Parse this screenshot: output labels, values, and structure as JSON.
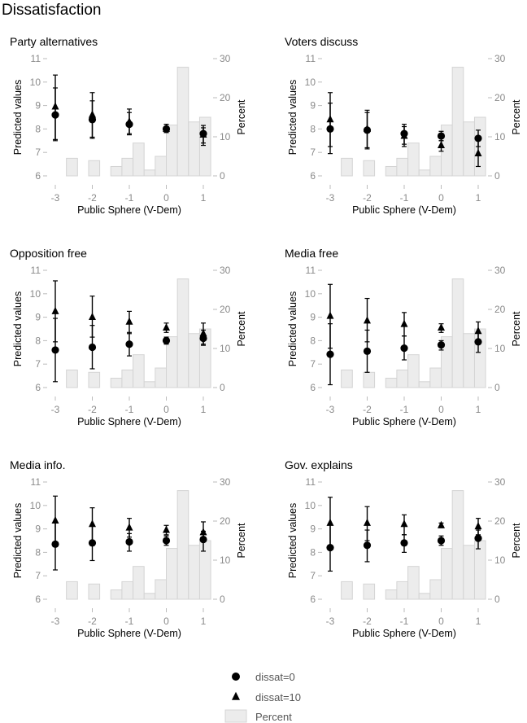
{
  "title": "Dissatisfaction",
  "chart_data": {
    "type": "scatter",
    "xlabel": "Public Sphere (V-Dem)",
    "ylabel": "Predicted values",
    "y2label": "Percent",
    "xticks": [
      -3,
      -2,
      -1,
      0,
      1
    ],
    "yticks": [
      6,
      7,
      8,
      9,
      10,
      11
    ],
    "y2ticks": [
      0,
      10,
      20,
      30
    ],
    "xlim": [
      -3,
      1
    ],
    "ylim": [
      6,
      11
    ],
    "y2lim": [
      0,
      30
    ],
    "histogram": {
      "bins": [
        [
          -2.7,
          -2.4
        ],
        [
          -2.1,
          -1.8
        ],
        [
          -1.5,
          -1.2
        ],
        [
          -1.2,
          -0.9
        ],
        [
          -0.9,
          -0.6
        ],
        [
          -0.6,
          -0.3
        ],
        [
          -0.3,
          0.0
        ],
        [
          0.0,
          0.3
        ],
        [
          0.3,
          0.6
        ],
        [
          0.6,
          0.9
        ],
        [
          0.9,
          1.2
        ]
      ],
      "percent": [
        4.5,
        3.9,
        2.4,
        4.5,
        8.4,
        1.5,
        5.0,
        13.0,
        27.8,
        13.8,
        15.0
      ],
      "fill": "#ececec",
      "stroke": "#d4d4d4"
    },
    "legend": {
      "placement": "bottom-center",
      "items": [
        "dissat=0",
        "dissat=10",
        "Percent"
      ]
    },
    "panels": [
      {
        "title": "Party alternatives",
        "series": [
          {
            "name": "dissat=0",
            "marker": "circle",
            "x": [
              -3,
              -2,
              -1,
              0,
              1
            ],
            "y": [
              8.6,
              8.4,
              8.2,
              8.0,
              7.8
            ],
            "lo": [
              7.5,
              7.6,
              7.75,
              7.85,
              7.4
            ],
            "hi": [
              9.75,
              9.2,
              8.7,
              8.2,
              8.05
            ]
          },
          {
            "name": "dissat=10",
            "marker": "triangle",
            "x": [
              -3,
              -2,
              -1,
              0,
              1
            ],
            "y": [
              8.95,
              8.6,
              8.3,
              8.0,
              7.75
            ],
            "lo": [
              7.55,
              7.65,
              7.8,
              7.85,
              7.3
            ],
            "hi": [
              10.3,
              9.55,
              8.85,
              8.2,
              8.15
            ]
          }
        ]
      },
      {
        "title": "Voters discuss",
        "series": [
          {
            "name": "dissat=0",
            "marker": "circle",
            "x": [
              -3,
              -2,
              -1,
              0,
              1
            ],
            "y": [
              8.0,
              7.95,
              7.8,
              7.7,
              7.6
            ],
            "lo": [
              7.25,
              7.2,
              7.35,
              7.5,
              7.25
            ],
            "hi": [
              9.1,
              8.7,
              8.2,
              7.9,
              7.95
            ]
          },
          {
            "name": "dissat=10",
            "marker": "triangle",
            "x": [
              -3,
              -2,
              -1,
              0,
              1
            ],
            "y": [
              8.4,
              8.0,
              7.7,
              7.3,
              6.95
            ],
            "lo": [
              6.95,
              7.15,
              7.25,
              7.05,
              6.4
            ],
            "hi": [
              9.55,
              8.8,
              8.1,
              7.5,
              7.5
            ]
          }
        ]
      },
      {
        "title": "Opposition free",
        "series": [
          {
            "name": "dissat=0",
            "marker": "circle",
            "x": [
              -3,
              -2,
              -1,
              0,
              1
            ],
            "y": [
              7.6,
              7.72,
              7.85,
              8.0,
              8.1
            ],
            "lo": [
              6.25,
              6.8,
              7.35,
              7.85,
              7.8
            ],
            "hi": [
              8.95,
              8.65,
              8.35,
              8.15,
              8.45
            ]
          },
          {
            "name": "dissat=10",
            "marker": "triangle",
            "x": [
              -3,
              -2,
              -1,
              0,
              1
            ],
            "y": [
              9.25,
              9.0,
              8.8,
              8.55,
              8.3
            ],
            "lo": [
              7.95,
              8.15,
              8.3,
              8.35,
              7.85
            ],
            "hi": [
              10.55,
              9.9,
              9.25,
              8.75,
              8.75
            ]
          }
        ]
      },
      {
        "title": "Media free",
        "series": [
          {
            "name": "dissat=0",
            "marker": "circle",
            "x": [
              -3,
              -2,
              -1,
              0,
              1
            ],
            "y": [
              7.42,
              7.55,
              7.68,
              7.82,
              7.95
            ],
            "lo": [
              6.12,
              6.65,
              7.18,
              7.6,
              7.5
            ],
            "hi": [
              8.72,
              8.45,
              8.2,
              8.0,
              8.35
            ]
          },
          {
            "name": "dissat=10",
            "marker": "triangle",
            "x": [
              -3,
              -2,
              -1,
              0,
              1
            ],
            "y": [
              9.05,
              8.85,
              8.7,
              8.55,
              8.4
            ],
            "lo": [
              7.68,
              7.95,
              8.2,
              8.35,
              7.95
            ],
            "hi": [
              10.4,
              9.8,
              9.2,
              8.72,
              8.8
            ]
          }
        ]
      },
      {
        "title": "Media info.",
        "series": [
          {
            "name": "dissat=0",
            "marker": "circle",
            "x": [
              -3,
              -2,
              -1,
              0,
              1
            ],
            "y": [
              8.35,
              8.4,
              8.45,
              8.5,
              8.55
            ],
            "lo": [
              7.25,
              7.65,
              8.05,
              8.3,
              8.05
            ],
            "hi": [
              9.3,
              9.15,
              8.8,
              8.7,
              8.9
            ]
          },
          {
            "name": "dissat=10",
            "marker": "triangle",
            "x": [
              -3,
              -2,
              -1,
              0,
              1
            ],
            "y": [
              9.35,
              9.2,
              9.05,
              8.95,
              8.85
            ],
            "lo": [
              8.25,
              8.45,
              8.65,
              8.75,
              8.45
            ],
            "hi": [
              10.4,
              9.9,
              9.45,
              9.15,
              9.3
            ]
          }
        ]
      },
      {
        "title": "Gov. explains",
        "series": [
          {
            "name": "dissat=0",
            "marker": "circle",
            "x": [
              -3,
              -2,
              -1,
              0,
              1
            ],
            "y": [
              8.2,
              8.3,
              8.4,
              8.5,
              8.6
            ],
            "lo": [
              7.2,
              7.6,
              8.0,
              8.3,
              8.15
            ],
            "hi": [
              9.2,
              8.95,
              8.75,
              8.7,
              8.95
            ]
          },
          {
            "name": "dissat=10",
            "marker": "triangle",
            "x": [
              -3,
              -2,
              -1,
              0,
              1
            ],
            "y": [
              9.25,
              9.25,
              9.2,
              9.15,
              9.1
            ],
            "lo": [
              8.2,
              8.5,
              8.75,
              9.05,
              8.75
            ],
            "hi": [
              10.35,
              9.95,
              9.6,
              9.25,
              9.45
            ]
          }
        ]
      }
    ]
  }
}
